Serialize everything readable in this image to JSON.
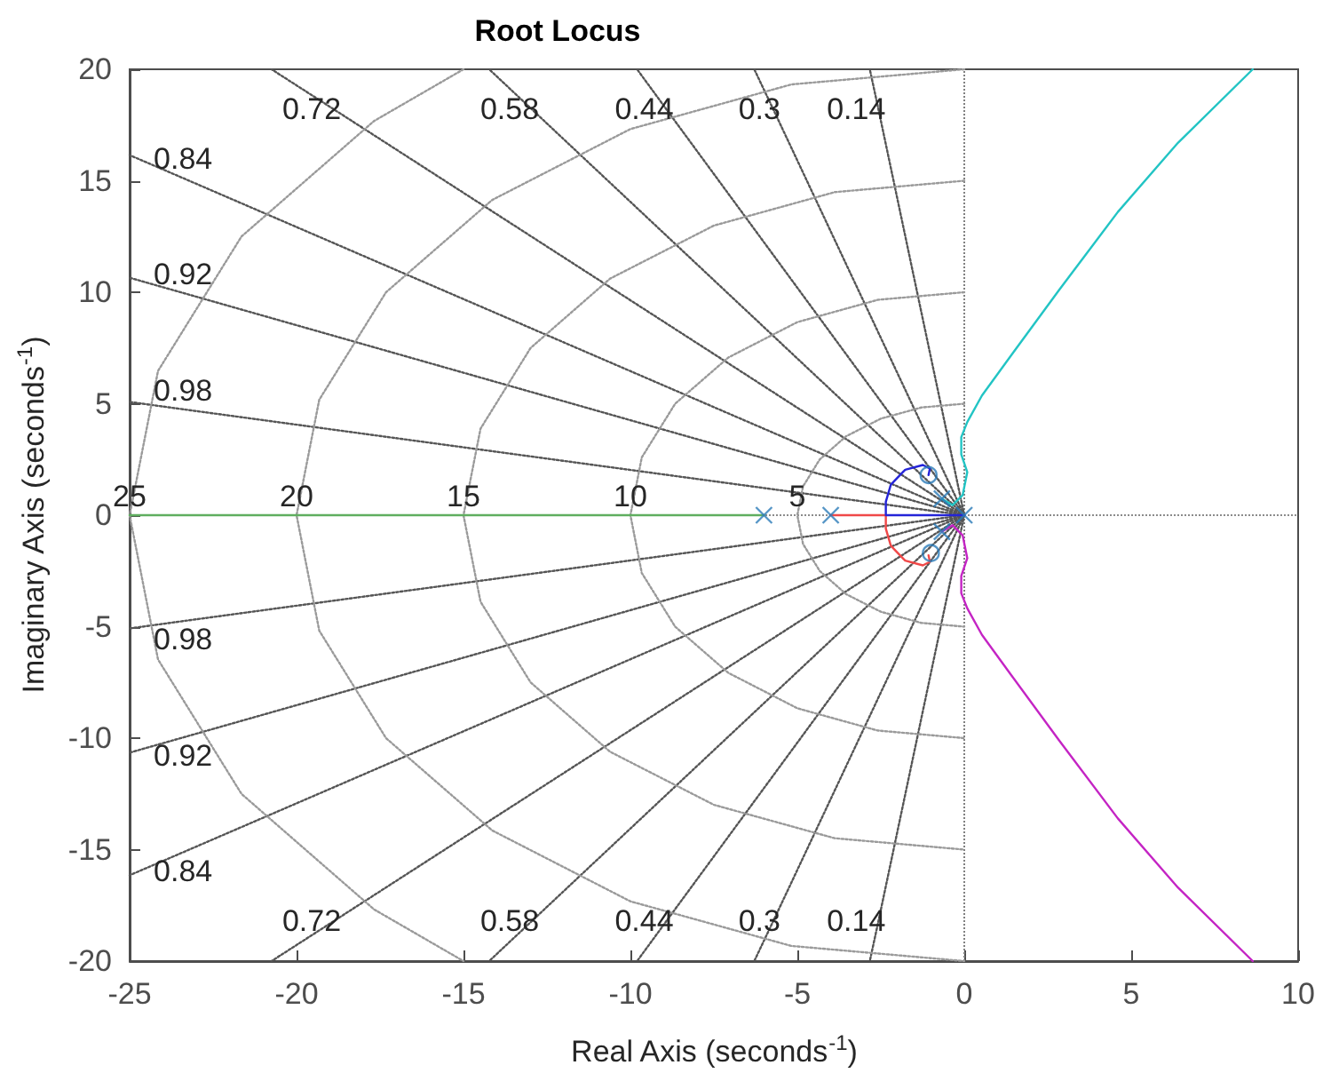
{
  "chart_data": {
    "type": "line",
    "title": "Root Locus",
    "xlabel": "Real Axis (seconds$^{-1}$)",
    "ylabel": "Imaginary Axis (seconds$^{-1}$)",
    "xlim": [
      -25,
      10
    ],
    "xticks": [
      -25,
      -20,
      -15,
      -10,
      -5,
      0,
      5,
      10
    ],
    "ylim": [
      -20,
      20
    ],
    "yticks": [
      -20,
      -15,
      -10,
      -5,
      0,
      5,
      10,
      15,
      20
    ],
    "grid": false,
    "series": [
      {
        "color": "#555555",
        "line_style": "dotted",
        "marker": "none",
        "x": [
          0,
          -2.57,
          -2.83,
          null,
          0,
          -2.57,
          -2.83,
          null,
          0,
          -5.72,
          -6.29,
          null,
          0,
          -5.72,
          -6.29,
          null,
          0,
          -8.92,
          -9.8,
          null,
          0,
          -8.92,
          -9.8,
          null,
          0,
          -12.95,
          -14.23,
          null,
          0,
          -12.95,
          -14.23,
          null,
          0,
          -18.88,
          -20.75,
          null,
          0,
          -18.88,
          -20.75,
          null,
          0,
          -23.4,
          -25,
          null,
          0,
          -23.4,
          -25,
          null,
          0,
          -23.4,
          -25,
          null,
          0,
          -23.4,
          -25,
          null,
          0,
          -23.4,
          -25,
          null,
          0,
          -23.4,
          -25
        ],
        "values": [
          0,
          18.2,
          20,
          null,
          0,
          -18.2,
          -20,
          null,
          0,
          18.2,
          20,
          null,
          0,
          -18.2,
          -20,
          null,
          0,
          18.2,
          20,
          null,
          0,
          -18.2,
          -20,
          null,
          0,
          18.2,
          20,
          null,
          0,
          -18.2,
          -20,
          null,
          0,
          18.2,
          20,
          null,
          0,
          -18.2,
          -20,
          null,
          0,
          15.12,
          16.15,
          null,
          0,
          -15.12,
          -16.15,
          null,
          0,
          9.97,
          10.65,
          null,
          0,
          -9.97,
          -10.65,
          null,
          0,
          4.75,
          5.08,
          null,
          0,
          -4.75,
          -5.08
        ]
      },
      {
        "color": "#9a9a9a",
        "line_style": "dotted",
        "marker": "none",
        "x": [
          0,
          -1.29,
          -2.5,
          -3.54,
          -4.33,
          -4.83,
          -5,
          -4.83,
          -4.33,
          -3.54,
          -2.5,
          -1.29,
          0,
          null,
          0,
          -2.59,
          -5,
          -7.07,
          -8.66,
          -9.66,
          -10,
          -9.66,
          -8.66,
          -7.07,
          -5,
          -2.59,
          0,
          null,
          0,
          -3.88,
          -7.5,
          -10.61,
          -12.99,
          -14.49,
          -15,
          -14.49,
          -12.99,
          -10.61,
          -7.5,
          -3.88,
          0,
          null,
          0,
          -5.18,
          -10,
          -14.14,
          -17.32,
          -19.32,
          -20,
          -19.32,
          -17.32,
          -14.14,
          -10,
          -5.18,
          0,
          null,
          -15,
          -17.68,
          -21.65,
          -24.15,
          -25,
          -24.15,
          -21.65,
          -17.68,
          -15
        ],
        "values": [
          5,
          4.83,
          4.33,
          3.54,
          2.5,
          1.29,
          0,
          -1.29,
          -2.5,
          -3.54,
          -4.33,
          -4.83,
          -5,
          null,
          10,
          9.66,
          8.66,
          7.07,
          5,
          2.59,
          0,
          -2.59,
          -5,
          -7.07,
          -8.66,
          -9.66,
          -10,
          null,
          15,
          14.49,
          12.99,
          10.61,
          7.5,
          3.88,
          0,
          -3.88,
          -7.5,
          -10.61,
          -12.99,
          -14.49,
          -15,
          null,
          20,
          19.32,
          17.32,
          14.14,
          10,
          5.18,
          0,
          -5.18,
          -10,
          -14.14,
          -17.32,
          -19.32,
          -20,
          null,
          20,
          17.68,
          12.5,
          6.47,
          0,
          -6.47,
          -12.5,
          -17.68,
          -20
        ]
      },
      {
        "color": "#5fae5f",
        "line_style": "solid",
        "marker": "none",
        "x": [
          -6,
          -25
        ],
        "values": [
          0,
          0
        ]
      },
      {
        "color": "#f04848",
        "line_style": "solid",
        "marker": "none",
        "x": [
          -4,
          -2.35,
          -2.35,
          -2.2,
          -1.77,
          -1.24,
          -1.03,
          -1.07
        ],
        "values": [
          0,
          0,
          -0.6,
          -1.37,
          -2.04,
          -2.25,
          -2.09,
          -1.8
        ]
      },
      {
        "color": "#2424d8",
        "line_style": "solid",
        "marker": "none",
        "x": [
          0,
          -2.35,
          -2.35,
          -2.2,
          -1.77,
          -1.24,
          -1.03,
          -1.07
        ],
        "values": [
          0,
          0,
          0.6,
          1.37,
          2.04,
          2.25,
          2.09,
          1.8
        ]
      },
      {
        "color": "#22c4c4",
        "line_style": "solid",
        "marker": "none",
        "x": [
          -0.67,
          -0.35,
          -0.05,
          0.09,
          -0.09,
          -0.09,
          0.09,
          0.53,
          1.42,
          2.84,
          4.6,
          6.4,
          8.64
        ],
        "values": [
          0.74,
          0.45,
          0.9,
          1.93,
          2.72,
          3.5,
          4.18,
          5.37,
          7.2,
          10.1,
          13.6,
          16.7,
          20
        ]
      },
      {
        "color": "#c424c4",
        "line_style": "solid",
        "marker": "none",
        "x": [
          -0.67,
          -0.35,
          -0.05,
          0.09,
          -0.09,
          -0.09,
          0.09,
          0.53,
          1.42,
          2.84,
          4.6,
          6.4,
          8.64
        ],
        "values": [
          -0.74,
          -0.45,
          -0.9,
          -1.93,
          -2.72,
          -3.5,
          -4.18,
          -5.37,
          -7.2,
          -10.1,
          -13.6,
          -16.7,
          -20
        ]
      },
      {
        "type": "scatter",
        "color": "#2a7ab8",
        "marker": "cross",
        "x": [
          -6,
          -4,
          -0.67,
          -0.67,
          0
        ],
        "values": [
          0,
          0,
          0.74,
          -0.74,
          0
        ]
      },
      {
        "type": "scatter",
        "color": "#2a7ab8",
        "marker": "circle",
        "x": [
          -1.07,
          -1.0
        ],
        "values": [
          1.8,
          -1.7
        ]
      }
    ],
    "ref_lines": [
      {
        "axis": "x",
        "value": 0,
        "color": "#808080",
        "line_style": "dotted"
      },
      {
        "axis": "y",
        "value": 0,
        "color": "#8c8c8c",
        "line_style": "dotted"
      }
    ],
    "annotations": [
      {
        "text": "0.72",
        "x": -18.88,
        "y": 18.2
      },
      {
        "text": "0.58",
        "x": -12.95,
        "y": 18.2
      },
      {
        "text": "0.44",
        "x": -8.92,
        "y": 18.2
      },
      {
        "text": "0.3",
        "x": -5.72,
        "y": 18.2
      },
      {
        "text": "0.14",
        "x": -2.57,
        "y": 18.2
      },
      {
        "text": "0.84",
        "x": -23.4,
        "y": 15.12
      },
      {
        "text": "0.92",
        "x": -23.4,
        "y": 9.97
      },
      {
        "text": "0.98",
        "x": -23.4,
        "y": 4.75
      },
      {
        "text": "25",
        "x": -25,
        "y": 0
      },
      {
        "text": "20",
        "x": -20,
        "y": 0
      },
      {
        "text": "15",
        "x": -15,
        "y": 0
      },
      {
        "text": "10",
        "x": -10,
        "y": 0
      },
      {
        "text": "5",
        "x": -5,
        "y": 0
      },
      {
        "text": "0.98",
        "x": -23.4,
        "y": -4.75
      },
      {
        "text": "0.92",
        "x": -23.4,
        "y": -9.97
      },
      {
        "text": "0.84",
        "x": -23.4,
        "y": -15.12
      },
      {
        "text": "0.72",
        "x": -18.88,
        "y": -18.2
      },
      {
        "text": "0.58",
        "x": -12.95,
        "y": -18.2
      },
      {
        "text": "0.44",
        "x": -8.92,
        "y": -18.2
      },
      {
        "text": "0.3",
        "x": -5.72,
        "y": -18.2
      },
      {
        "text": "0.14",
        "x": -2.57,
        "y": -18.2
      }
    ]
  }
}
